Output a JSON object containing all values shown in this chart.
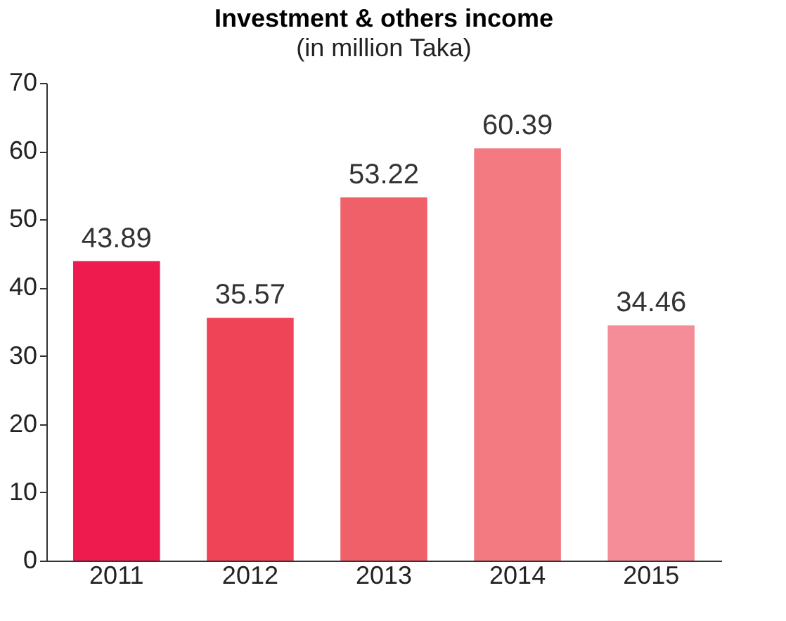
{
  "chart_data": {
    "type": "bar",
    "title": "Investment & others income",
    "subtitle": "(in million Taka)",
    "categories": [
      "2011",
      "2012",
      "2013",
      "2014",
      "2015"
    ],
    "values": [
      43.89,
      35.57,
      53.22,
      60.39,
      34.46
    ],
    "colors": [
      "#ee1b4e",
      "#ef4458",
      "#f06068",
      "#f27a80",
      "#f48d97"
    ],
    "ylim": [
      0,
      70
    ],
    "yticks": [
      0,
      10,
      20,
      30,
      40,
      50,
      60,
      70
    ],
    "grid": false,
    "data_labels": true
  }
}
